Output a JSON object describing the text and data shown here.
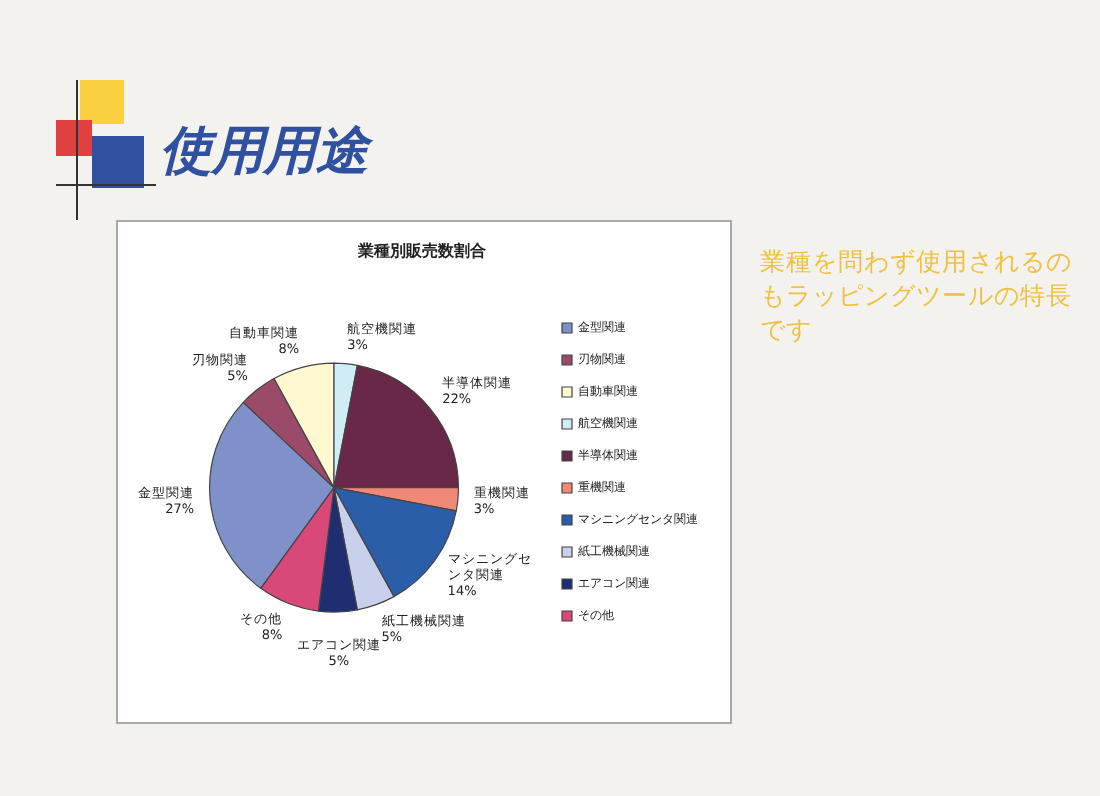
{
  "chart_data": {
    "type": "pie",
    "title": "業種別販売数割合",
    "categories": [
      "金型関連",
      "刃物関連",
      "自動車関連",
      "航空機関連",
      "半導体関連",
      "重機関連",
      "マシニングセンタ関連",
      "紙工機械関連",
      "エアコン関連",
      "その他"
    ],
    "values": [
      27,
      5,
      8,
      3,
      22,
      3,
      14,
      5,
      5,
      8
    ],
    "value_labels": [
      "27%",
      "5%",
      "8%",
      "3%",
      "22%",
      "3%",
      "14%",
      "5%",
      "5%",
      "8%"
    ],
    "colors": [
      "#8090c8",
      "#9c4a6a",
      "#fff8d0",
      "#d0ecf4",
      "#6a2848",
      "#f08878",
      "#2a5ea8",
      "#c8d0ec",
      "#1e2e70",
      "#d84878"
    ],
    "legend": "right",
    "annotations": [
      "使用用途",
      "業種を問わず使用されるのもラッピングツールの特長です"
    ]
  }
}
